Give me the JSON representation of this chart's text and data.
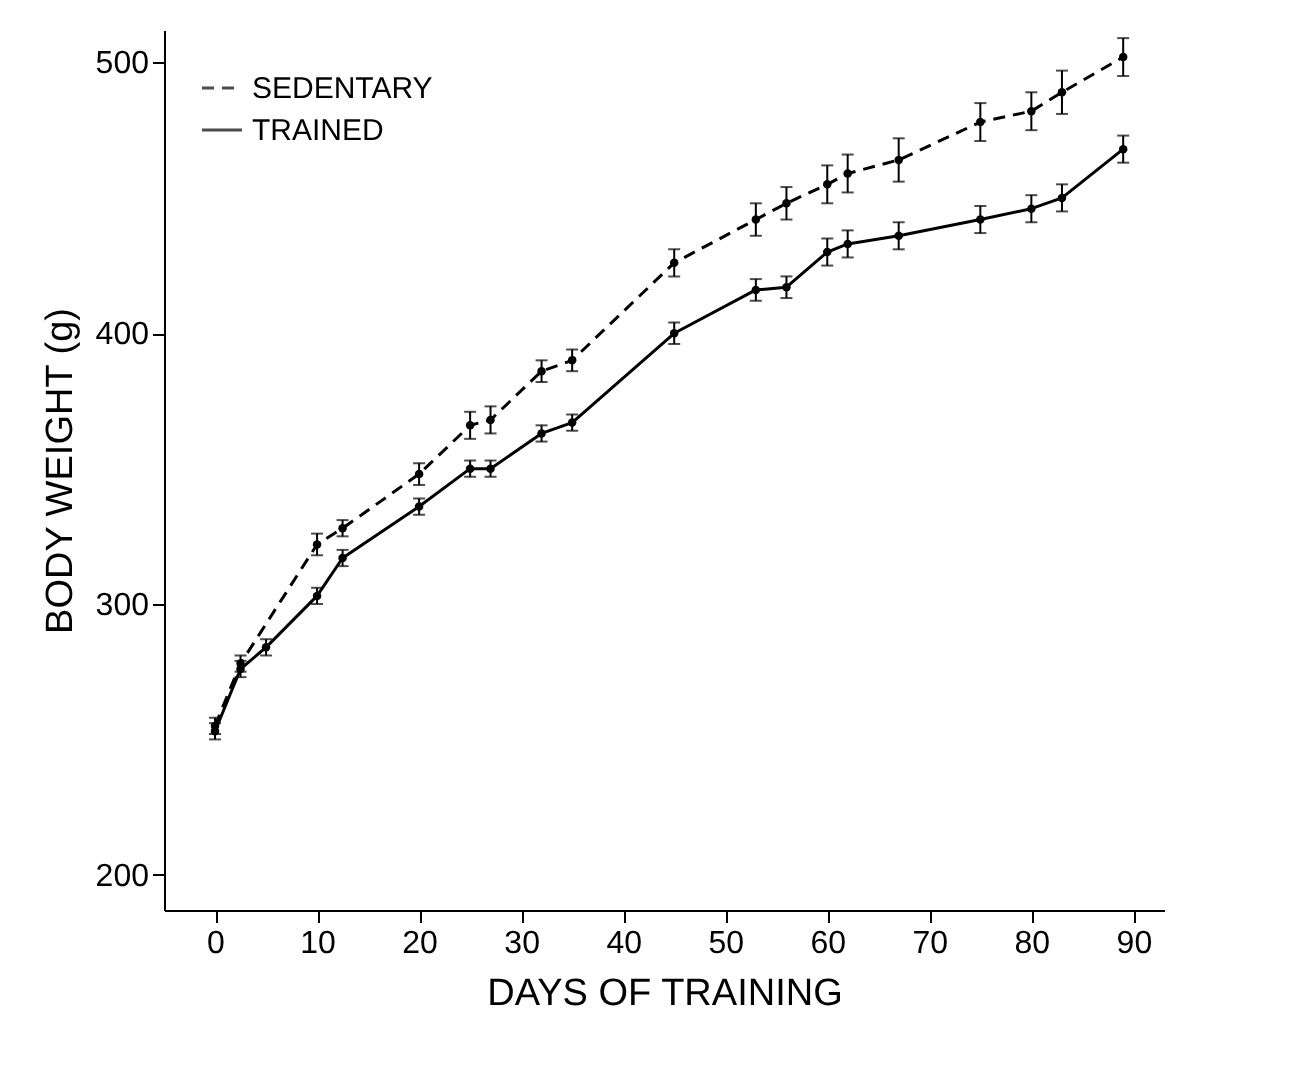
{
  "chart_data": {
    "type": "line",
    "xlabel": "DAYS OF TRAINING",
    "ylabel": "BODY WEIGHT (g)",
    "xlim": [
      -5,
      93
    ],
    "xticks": [
      0,
      10,
      20,
      30,
      40,
      50,
      60,
      70,
      80,
      90
    ],
    "ylim": [
      187,
      512
    ],
    "yticks": [
      200,
      300,
      400,
      500
    ],
    "grid": false,
    "legend": "top left",
    "marker": "circle",
    "series": [
      {
        "name": "SEDENTARY",
        "color": "#000000",
        "line_style": "dashed",
        "x": [
          0,
          2.5,
          10,
          12.5,
          20,
          25,
          27,
          32,
          35,
          45,
          53,
          56,
          60,
          62,
          67,
          75,
          80,
          83,
          89
        ],
        "values": [
          255,
          278,
          322,
          328,
          348,
          366,
          368,
          386,
          390,
          426,
          442,
          448,
          455,
          459,
          464,
          478,
          482,
          489,
          502
        ],
        "errors": [
          3,
          3,
          4,
          3,
          4,
          5,
          5,
          4,
          4,
          5,
          6,
          6,
          7,
          7,
          8,
          7,
          7,
          8,
          7
        ]
      },
      {
        "name": "TRAINED",
        "color": "#000000",
        "line_style": "solid",
        "x": [
          0,
          2.5,
          5,
          10,
          12.5,
          20,
          25,
          27,
          32,
          35,
          45,
          53,
          56,
          60,
          62,
          67,
          75,
          80,
          83,
          89
        ],
        "values": [
          253,
          276,
          284,
          303,
          317,
          336,
          350,
          350,
          363,
          367,
          400,
          416,
          417,
          430,
          433,
          436,
          442,
          446,
          450,
          468
        ],
        "errors": [
          3,
          3,
          3,
          3,
          3,
          3,
          3,
          3,
          3,
          3,
          4,
          4,
          4,
          5,
          5,
          5,
          5,
          5,
          5,
          5
        ]
      }
    ]
  }
}
